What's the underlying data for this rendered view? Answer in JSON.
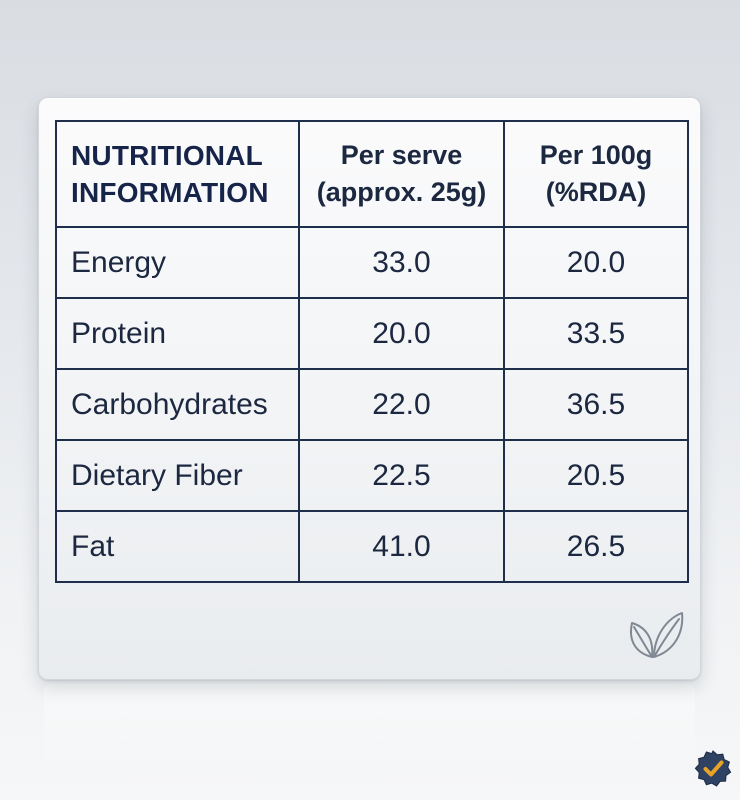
{
  "table": {
    "header": {
      "col1_line1": "NUTRITIONAL",
      "col1_line2": "INFORMATION",
      "col2_line1": "Per serve",
      "col2_line2": "(approx. 25g)",
      "col3_line1": "Per 100g",
      "col3_line2": "(%RDA)"
    },
    "rows": [
      {
        "label": "Energy",
        "per_serve": "33.0",
        "per_100g": "20.0"
      },
      {
        "label": "Protein",
        "per_serve": "20.0",
        "per_100g": "33.5"
      },
      {
        "label": "Carbohydrates",
        "per_serve": "22.0",
        "per_100g": "36.5"
      },
      {
        "label": "Dietary Fiber",
        "per_serve": "22.5",
        "per_100g": "20.5"
      },
      {
        "label": "Fat",
        "per_serve": "41.0",
        "per_100g": "26.5"
      }
    ]
  },
  "icons": {
    "leaf": "leaf-icon",
    "badge": "verified-badge-icon"
  },
  "colors": {
    "text": "#1c2740",
    "border": "#1f2f4b",
    "badge": "#2f4264",
    "check": "#e7a327"
  }
}
